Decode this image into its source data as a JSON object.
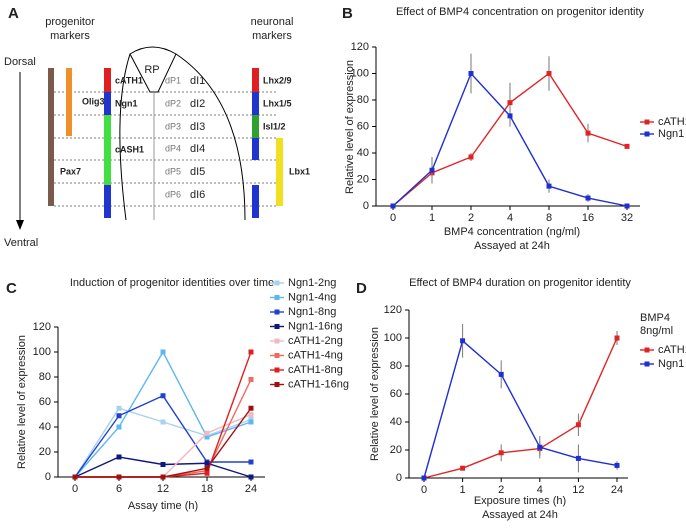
{
  "diagram": {
    "panel_label": "A",
    "progenitor_header": [
      "progenitor",
      "markers"
    ],
    "neuronal_header": [
      "neuronal",
      "markers"
    ],
    "axis_top": "Dorsal",
    "axis_bottom": "Ventral",
    "roof_plate": "RP",
    "progenitor_markers": [
      "Olig3",
      "cATH1",
      "Ngn1",
      "cASH1",
      "Pax7"
    ],
    "progenitor_domains": [
      "dP1",
      "dP2",
      "dP3",
      "dP4",
      "dP5",
      "dP6"
    ],
    "neuronal_domains": [
      "dI1",
      "dI2",
      "dI3",
      "dI4",
      "dI5",
      "dI6"
    ],
    "neuronal_markers": [
      "Lhx2/9",
      "Lhx1/5",
      "Isl1/2",
      "Lbx1"
    ]
  },
  "chart_data": [
    {
      "type": "line",
      "panel_label": "B",
      "title": "Effect of BMP4 concentration on progenitor identity",
      "xlabel": "BMP4 concentration (ng/ml)",
      "xlabel_note": "Assayed at 24h",
      "ylabel": "Relative level of expression",
      "categories": [
        "0",
        "1",
        "2",
        "4",
        "8",
        "16",
        "32"
      ],
      "series": [
        {
          "name": "cATH1",
          "color": "#e02424",
          "values": [
            0,
            25,
            37,
            78,
            100,
            55,
            45
          ],
          "errors": [
            0,
            8,
            3,
            15,
            13,
            7,
            0
          ]
        },
        {
          "name": "Ngn1",
          "color": "#1f2fd0",
          "values": [
            0,
            27,
            100,
            68,
            15,
            6,
            0
          ],
          "errors": [
            0,
            10,
            15,
            8,
            5,
            3,
            0
          ]
        }
      ],
      "ylim": [
        0,
        120
      ],
      "yticks": [
        0,
        20,
        40,
        60,
        80,
        100,
        120
      ]
    },
    {
      "type": "line",
      "panel_label": "C",
      "title": "Induction of progenitor identities over time",
      "xlabel": "Assay time (h)",
      "ylabel": "Relative level of expression",
      "categories": [
        "0",
        "6",
        "12",
        "18",
        "24"
      ],
      "series": [
        {
          "name": "Ngn1-2ng",
          "color": "#a8d0f0",
          "values": [
            0,
            55,
            44,
            33,
            46
          ]
        },
        {
          "name": "Ngn1-4ng",
          "color": "#5bb8f0",
          "values": [
            0,
            40,
            100,
            32,
            44
          ]
        },
        {
          "name": "Ngn1-8ng",
          "color": "#2040d0",
          "values": [
            0,
            49,
            65,
            12,
            12
          ]
        },
        {
          "name": "Ngn1-16ng",
          "color": "#101880",
          "values": [
            0,
            16,
            10,
            11,
            0
          ]
        },
        {
          "name": "cATH1-2ng",
          "color": "#f4b8c0",
          "values": [
            0,
            0,
            0,
            35,
            50
          ]
        },
        {
          "name": "cATH1-4ng",
          "color": "#f06a60",
          "values": [
            0,
            0,
            0,
            5,
            78
          ]
        },
        {
          "name": "cATH1-8ng",
          "color": "#e02020",
          "values": [
            0,
            0,
            0,
            3,
            100
          ]
        },
        {
          "name": "cATH1-16ng",
          "color": "#a01010",
          "values": [
            0,
            0,
            0,
            7,
            55
          ]
        }
      ],
      "ylim": [
        0,
        120
      ],
      "yticks": [
        0,
        20,
        40,
        60,
        80,
        100,
        120
      ]
    },
    {
      "type": "line",
      "panel_label": "D",
      "title": "Effect of BMP4 duration on progenitor identity",
      "xlabel": "Exposure times (h)",
      "xlabel_note": "Assayed at 24h",
      "ylabel": "Relative level of expression",
      "annotation": [
        "BMP4",
        "8ng/ml"
      ],
      "categories": [
        "0",
        "1",
        "2",
        "4",
        "12",
        "24"
      ],
      "series": [
        {
          "name": "cATH1",
          "color": "#e02424",
          "values": [
            0,
            7,
            18,
            21,
            38,
            100
          ],
          "errors": [
            0,
            1,
            6,
            5,
            8,
            5
          ]
        },
        {
          "name": "Ngn1",
          "color": "#1f2fd0",
          "values": [
            0,
            98,
            74,
            22,
            14,
            9
          ],
          "errors": [
            0,
            12,
            10,
            8,
            10,
            3
          ]
        }
      ],
      "ylim": [
        0,
        120
      ],
      "yticks": [
        0,
        20,
        40,
        60,
        80,
        100,
        120
      ]
    }
  ]
}
